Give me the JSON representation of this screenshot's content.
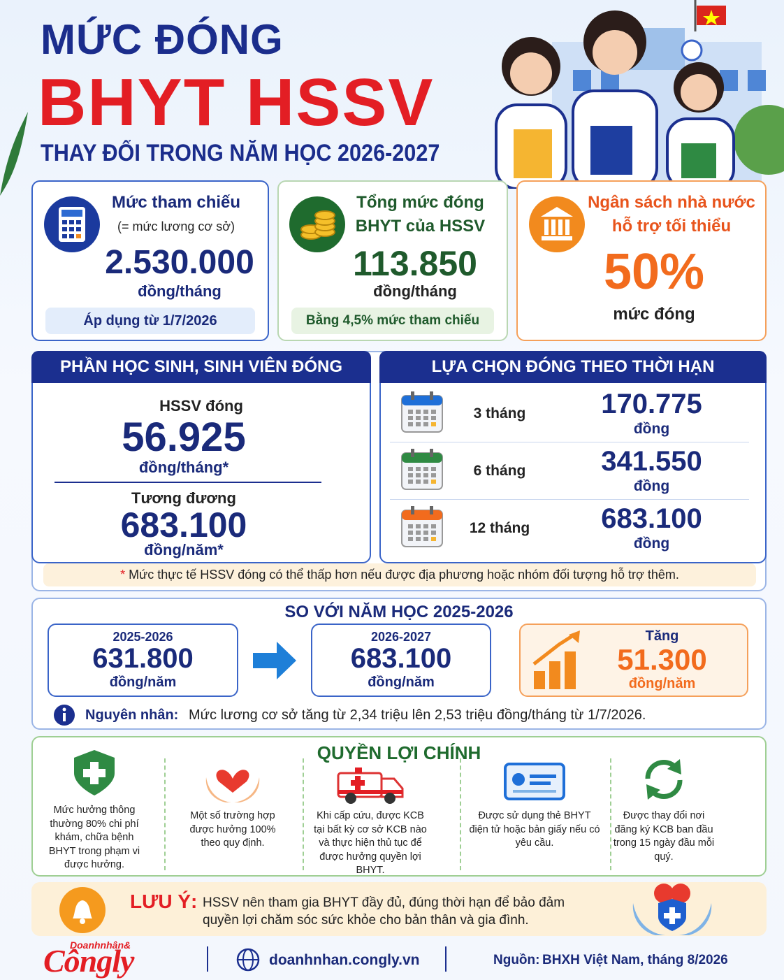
{
  "header": {
    "title_line1": "MỨC ĐÓNG",
    "title_line2": "BHYT HSSV",
    "subtitle": "THAY ĐỔI TRONG NĂM HỌC 2026-2027"
  },
  "cards": [
    {
      "label": "Mức tham chiếu",
      "sublabel": "(= mức lương cơ sở)",
      "value": "2.530.000",
      "unit": "đồng/tháng",
      "note": "Áp dụng từ 1/7/2026"
    },
    {
      "label": "Tổng mức đóng",
      "sublabel": "BHYT của HSSV",
      "value": "113.850",
      "unit": "đồng/tháng",
      "note": "Bằng 4,5% mức tham chiếu"
    },
    {
      "label": "Ngân sách nhà nước",
      "sublabel": "hỗ trợ tối thiểu",
      "value": "50%",
      "unit": "mức đóng"
    }
  ],
  "student_share": {
    "title": "PHẦN HỌC SINH, SINH VIÊN ĐÓNG",
    "items": [
      {
        "label": "HSSV đóng",
        "value": "56.925",
        "unit": "đồng/tháng*"
      },
      {
        "label": "Tương đương",
        "value": "683.100",
        "unit": "đồng/năm*"
      }
    ]
  },
  "term_options": {
    "title": "LỰA CHỌN ĐÓNG THEO THỜI HẠN",
    "rows": [
      {
        "term": "3 tháng",
        "value": "170.775",
        "unit": "đồng"
      },
      {
        "term": "6 tháng",
        "value": "341.550",
        "unit": "đồng"
      },
      {
        "term": "12 tháng",
        "value": "683.100",
        "unit": "đồng"
      }
    ]
  },
  "footnote": {
    "mark": "*",
    "text": "Mức thực tế HSSV đóng có thể thấp hơn nếu được địa phương hoặc nhóm đối tượng hỗ trợ thêm."
  },
  "comparison": {
    "title": "SO VỚI NĂM HỌC 2025-2026",
    "before": {
      "year": "2025-2026",
      "value": "631.800",
      "unit": "đồng/năm"
    },
    "after": {
      "year": "2026-2027",
      "value": "683.100",
      "unit": "đồng/năm"
    },
    "increase": {
      "label": "Tăng",
      "value": "51.300",
      "unit": "đồng/năm"
    },
    "reason_label": "Nguyên nhân:",
    "reason_text": "Mức lương cơ sở tăng từ 2,34 triệu lên 2,53 triệu đồng/tháng từ 1/7/2026."
  },
  "benefits": {
    "title": "QUYỀN LỢI CHÍNH",
    "items": [
      "Mức hưởng thông thường 80% chi phí khám, chữa bệnh BHYT trong phạm vi được hưởng.",
      "Một số trường hợp được hưởng 100% theo quy định.",
      "Khi cấp cứu, được KCB tại bất kỳ cơ sở KCB nào và thực hiện thủ tục để được hưởng quyền lợi BHYT.",
      "Được sử dụng thẻ BHYT điện tử hoặc bản giấy nếu có yêu cầu.",
      "Được thay đổi nơi đăng ký KCB ban đầu trong 15 ngày đầu mỗi quý."
    ]
  },
  "note": {
    "label": "LƯU Ý:",
    "text": "HSSV nên tham gia BHYT đầy đủ, đúng thời hạn để bảo đảm quyền lợi chăm sóc sức khỏe cho bản thân và gia đình."
  },
  "footer": {
    "logo_top": "Doanhnhân&",
    "logo": "Côngly",
    "website": "doanhnhan.congly.vn",
    "source_label": "Nguồn:",
    "source": "BHXH Việt Nam, tháng 8/2026"
  }
}
